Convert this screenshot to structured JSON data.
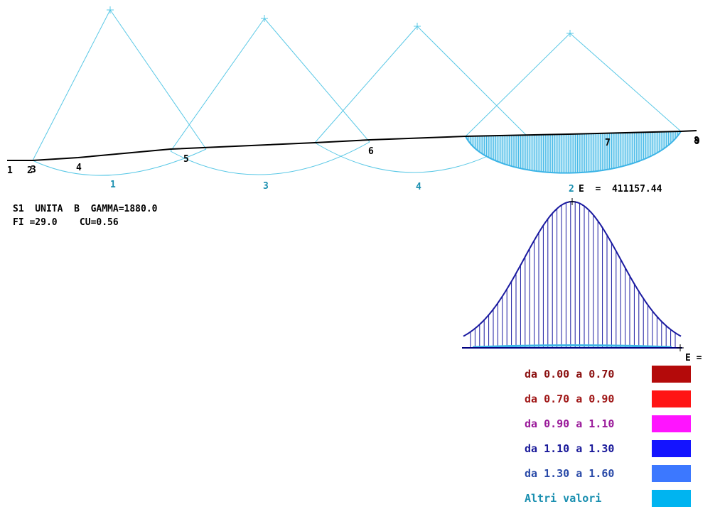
{
  "profile": {
    "point_labels": [
      "1",
      "2",
      "3",
      "4",
      "5",
      "6",
      "7",
      "8",
      "9"
    ]
  },
  "surfaces": {
    "labels": [
      "1",
      "3",
      "4",
      "2"
    ]
  },
  "info": {
    "line1": "S1  UNITA  B  GAMMA=1880.0",
    "line2": "FI =29.0    CU=0.56"
  },
  "energy": {
    "label": "E  =  411157.44",
    "axis_label": "E ="
  },
  "legend": [
    {
      "label": "da 0.00 a 0.70",
      "color": "#b40a0a",
      "text_color": "#8b1010"
    },
    {
      "label": "da 0.70 a 0.90",
      "color": "#ff1414",
      "text_color": "#a01818"
    },
    {
      "label": "da 0.90 a 1.10",
      "color": "#ff14ff",
      "text_color": "#9a1a9a"
    },
    {
      "label": "da 1.10 a 1.30",
      "color": "#1414ff",
      "text_color": "#1a1a9a"
    },
    {
      "label": "da 1.30 a 1.60",
      "color": "#3c78ff",
      "text_color": "#2a4aa8"
    },
    {
      "label": "Altri valori",
      "color": "#00b4f0",
      "text_color": "#1a8fb0"
    }
  ],
  "colors": {
    "slip_lines": "#5ac8e6",
    "slip_fill": "#3cb4e6",
    "ground": "#000000",
    "curve": "#1a1aa0"
  }
}
